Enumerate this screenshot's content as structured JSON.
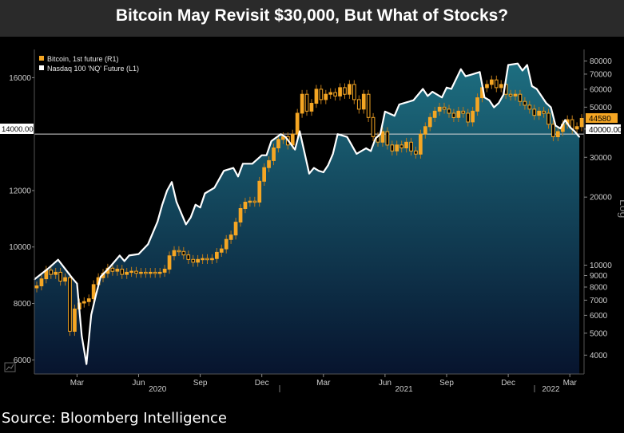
{
  "title": "Bitcoin May Revisit $30,000, But What of Stocks?",
  "source": "Source: Bloomberg Intelligence",
  "colors": {
    "bitcoin_up": "#f5a623",
    "bitcoin_down": "#f5a623",
    "nasdaq_line": "#ffffff",
    "area_top": "#1d6e80",
    "area_bottom": "#07142e",
    "background": "#000000",
    "title_bar": "#2a2a2a"
  },
  "chart_data": {
    "type": "line",
    "title": "Bitcoin May Revisit $30,000, But What of Stocks?",
    "legend": [
      {
        "name": "Bitcoin, 1st future (R1)",
        "color": "#f5a623"
      },
      {
        "name": "Nasdaq 100 'NQ' Future  (L1)",
        "color": "#ffffff"
      }
    ],
    "x_tick_labels": [
      "Mar",
      "Jun",
      "Sep",
      "Dec",
      "Mar",
      "Jun",
      "Sep",
      "Dec",
      "Mar"
    ],
    "x_year_labels": [
      "2020",
      "2021",
      "2022"
    ],
    "left_axis": {
      "scale": "linear",
      "ylim": [
        5500,
        17000
      ],
      "ticks": [
        "6000",
        "8000",
        "10000",
        "12000",
        "16000"
      ]
    },
    "right_axis": {
      "scale": "log",
      "label": "Log",
      "ylim": [
        3300,
        90000
      ],
      "ticks": [
        "80000",
        "70000",
        "60000",
        "50000",
        "40000",
        "30000",
        "20000",
        "10000",
        "9000",
        "8000",
        "7000",
        "6000",
        "5000",
        "4000"
      ]
    },
    "markers": {
      "left_value": "14000.00",
      "right_price": "44580",
      "right_level": "40000.00"
    },
    "series": [
      {
        "name": "Nasdaq 100 'NQ' Future",
        "axis": "left",
        "type": "area-line",
        "weeks": [
          0,
          3,
          5,
          8,
          9,
          10,
          11,
          12,
          13,
          14,
          16,
          18,
          19,
          20,
          22,
          24,
          26,
          27,
          28,
          29,
          30,
          32,
          33,
          34,
          35,
          36,
          38,
          40,
          42,
          43,
          44,
          46,
          48,
          49,
          50,
          52,
          53,
          55,
          56,
          57,
          58,
          59,
          60,
          61,
          62,
          63,
          64,
          66,
          67,
          68,
          70,
          71,
          72,
          73,
          74,
          76,
          77,
          79,
          80,
          82,
          83,
          84,
          86,
          87,
          88,
          90,
          91,
          92,
          94,
          95,
          96,
          97,
          98,
          99,
          100,
          102,
          103,
          104,
          105,
          106,
          108,
          109,
          110,
          111,
          112,
          113,
          114,
          115
        ],
        "values": [
          8850,
          9250,
          9550,
          8900,
          8700,
          6850,
          5850,
          7600,
          8300,
          8950,
          9300,
          9700,
          9500,
          9700,
          9750,
          10100,
          10900,
          11500,
          12000,
          12300,
          11600,
          10800,
          11050,
          11500,
          11400,
          11900,
          12100,
          12700,
          12800,
          12500,
          12950,
          12950,
          13250,
          13250,
          13750,
          14000,
          13900,
          13450,
          14100,
          13350,
          12600,
          12800,
          12700,
          12650,
          12900,
          13300,
          14000,
          13900,
          13600,
          13300,
          13500,
          13400,
          13850,
          14000,
          14800,
          14650,
          15050,
          15150,
          15200,
          15600,
          15350,
          15500,
          15300,
          15650,
          15600,
          16300,
          16050,
          16100,
          16200,
          15300,
          15200,
          14950,
          15100,
          15400,
          16450,
          16500,
          16250,
          16450,
          15700,
          15600,
          15100,
          14950,
          14300,
          14200,
          14500,
          14250,
          14100,
          13900
        ]
      },
      {
        "name": "Bitcoin, 1st future",
        "axis": "right",
        "type": "candlestick",
        "closes": [
          8100,
          8700,
          9500,
          9100,
          9300,
          8500,
          8800,
          5100,
          6400,
          6800,
          6900,
          7100,
          8200,
          8800,
          9200,
          9700,
          9400,
          9600,
          9100,
          9300,
          9400,
          9200,
          9300,
          9200,
          9300,
          9200,
          9300,
          9600,
          11000,
          11600,
          11500,
          11100,
          10600,
          10300,
          10600,
          10700,
          10600,
          10700,
          11400,
          11800,
          13000,
          13600,
          15500,
          17800,
          19000,
          19200,
          19000,
          23500,
          27000,
          29000,
          33000,
          36000,
          37000,
          34000,
          38000,
          47000,
          57000,
          48000,
          52000,
          60000,
          54000,
          57000,
          58000,
          56000,
          61000,
          57000,
          63000,
          54000,
          49000,
          57000,
          45000,
          37000,
          35000,
          39000,
          34000,
          32000,
          34000,
          33000,
          35000,
          32000,
          31000,
          38000,
          41000,
          45000,
          48000,
          50000,
          49000,
          47000,
          45000,
          48000,
          47000,
          43000,
          48000,
          55000,
          61000,
          63000,
          66000,
          61000,
          63000,
          57000,
          56000,
          57000,
          53000,
          51000,
          49000,
          46000,
          48000,
          47000,
          42000,
          37000,
          39000,
          42000,
          44000,
          40000,
          41000,
          44580
        ]
      }
    ]
  }
}
